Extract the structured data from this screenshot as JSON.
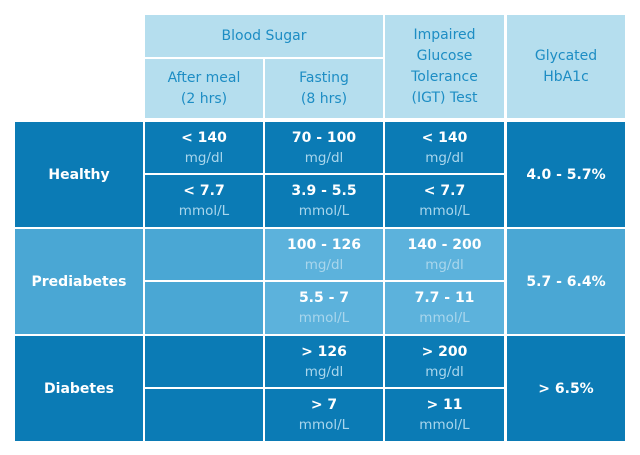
{
  "header": {
    "blood_sugar": "Blood Sugar",
    "after_meal": "After meal\n(2 hrs)",
    "fasting": "Fasting\n(8 hrs)",
    "igt": "Impaired\nGlucose\nTolerance\n(IGT) Test",
    "hba1c": "Glycated\nHbA1c"
  },
  "rows": [
    {
      "label": "Healthy",
      "after_meal": [
        {
          "value": "< 140",
          "unit": "mg/dl"
        },
        {
          "value": "< 7.7",
          "unit": "mmol/L"
        }
      ],
      "fasting": [
        {
          "value": "70 - 100",
          "unit": "mg/dl"
        },
        {
          "value": "3.9 - 5.5",
          "unit": "mmol/L"
        }
      ],
      "igt": [
        {
          "value": "< 140",
          "unit": "mg/dl"
        },
        {
          "value": "< 7.7",
          "unit": "mmol/L"
        }
      ],
      "hba1c": "4.0 - 5.7%"
    },
    {
      "label": "Prediabetes",
      "fasting": [
        {
          "value": "100 - 126",
          "unit": "mg/dl"
        },
        {
          "value": "5.5 - 7",
          "unit": "mmol/L"
        }
      ],
      "igt": [
        {
          "value": "140 - 200",
          "unit": "mg/dl"
        },
        {
          "value": "7.7 - 11",
          "unit": "mmol/L"
        }
      ],
      "hba1c": "5.7 - 6.4%"
    },
    {
      "label": "Diabetes",
      "fasting": [
        {
          "value": "> 126",
          "unit": "mg/dl"
        },
        {
          "value": "> 7",
          "unit": "mmol/L"
        }
      ],
      "igt": [
        {
          "value": "> 200",
          "unit": "mg/dl"
        },
        {
          "value": "> 11",
          "unit": "mmol/L"
        }
      ],
      "hba1c": "> 6.5%"
    }
  ]
}
